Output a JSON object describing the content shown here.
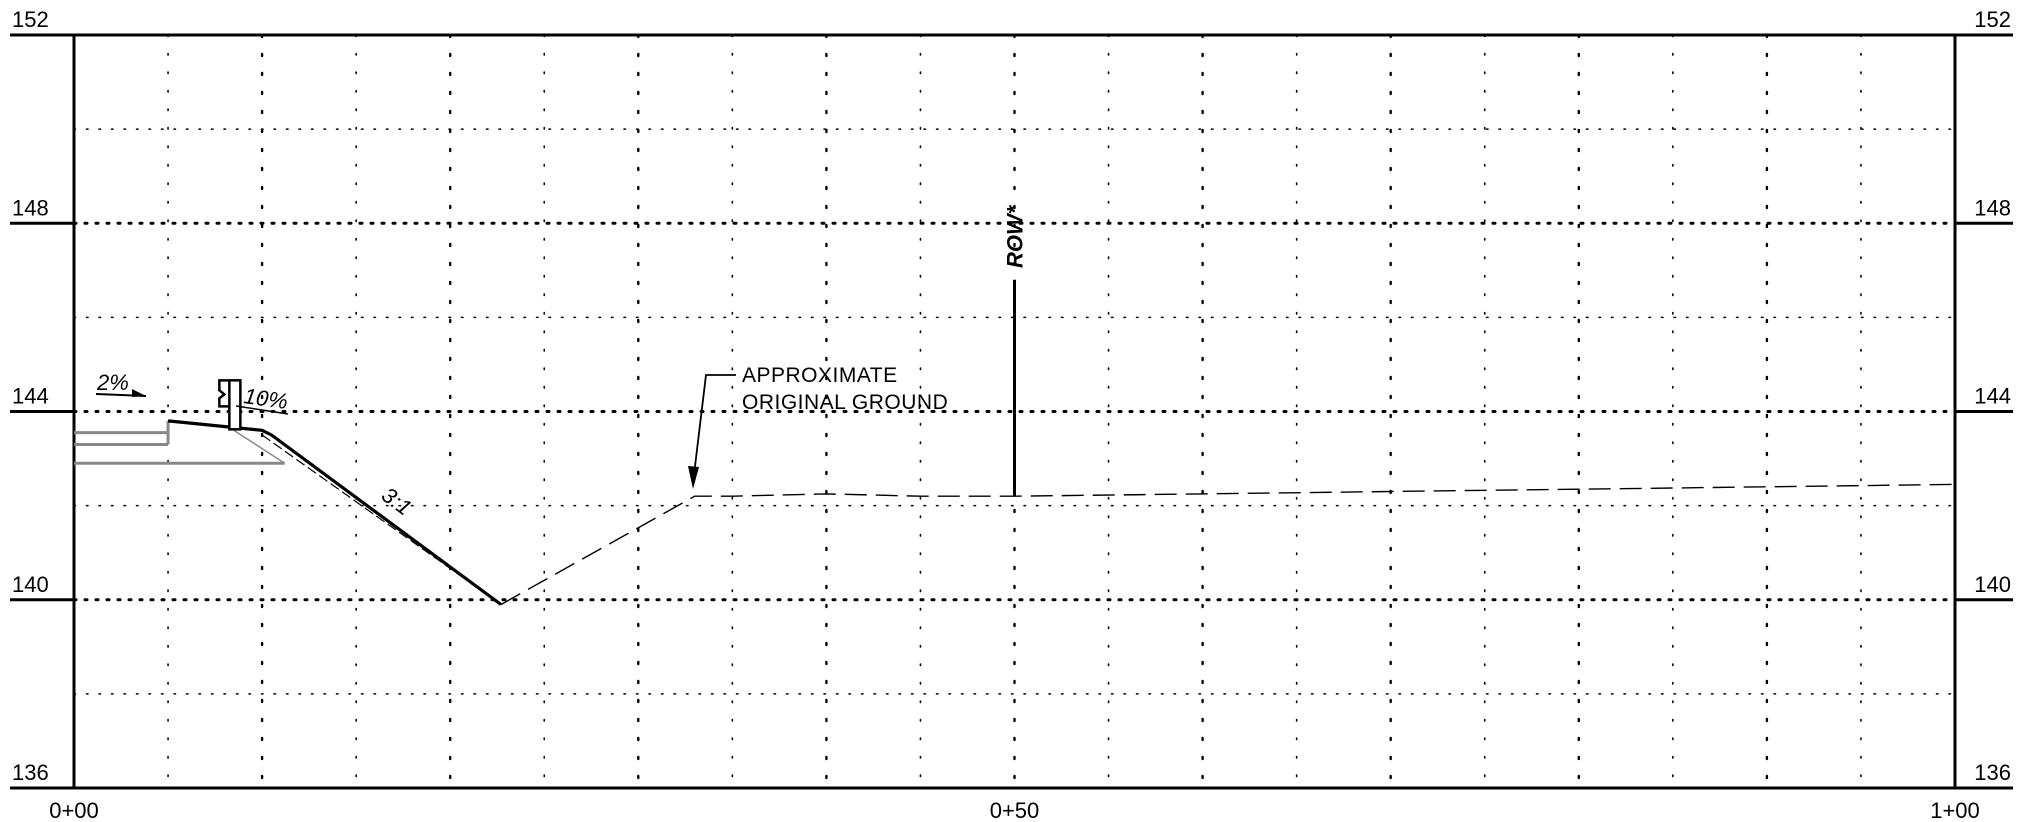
{
  "chart_data": {
    "type": "line",
    "title": "",
    "xlabel": "",
    "ylabel": "",
    "xlim": [
      0,
      100
    ],
    "ylim": [
      136,
      152
    ],
    "x_ticks": [
      "0+00",
      "0+50",
      "1+00"
    ],
    "y_ticks_left": [
      "152",
      "148",
      "144",
      "140",
      "136"
    ],
    "y_ticks_right": [
      "152",
      "148",
      "144",
      "140",
      "136"
    ],
    "grid": "dotted",
    "series": [
      {
        "style": "solid",
        "points": [
          [
            5,
            143.8
          ],
          [
            10,
            143.6
          ],
          [
            10.5,
            143.5
          ],
          [
            22.7,
            139.9
          ]
        ]
      },
      {
        "style": "dashed",
        "points": [
          [
            22.7,
            139.9
          ],
          [
            33,
            142.2
          ],
          [
            35,
            142.2
          ],
          [
            40,
            142.25
          ],
          [
            45,
            142.2
          ],
          [
            50,
            142.2
          ],
          [
            60,
            142.25
          ],
          [
            70,
            142.3
          ],
          [
            80,
            142.35
          ],
          [
            90,
            142.4
          ],
          [
            100,
            142.45
          ]
        ]
      }
    ],
    "annotations": {
      "pavement_slope": "2%",
      "shoulder_slope": "10%",
      "side_slope": "3:1",
      "ground_note_line1": "APPROXIMATE",
      "ground_note_line2": "ORIGINAL GROUND",
      "row": "ROW*",
      "row_station": 50,
      "row_top_elev": 146.8
    }
  }
}
